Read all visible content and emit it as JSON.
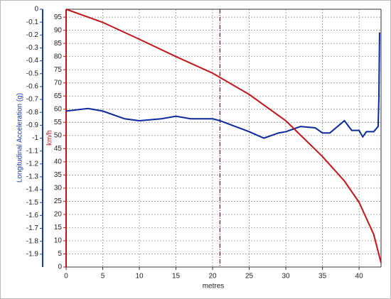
{
  "chart_data": {
    "type": "line",
    "xlabel": "metres",
    "ylabel": "Longitudinal Acceleration (g)",
    "y2label": "km/h",
    "xlim": [
      0,
      43
    ],
    "xticks": [
      0,
      5,
      10,
      15,
      20,
      25,
      30,
      35,
      40
    ],
    "ylim": [
      -2,
      0
    ],
    "yticks": [
      0,
      -0.1,
      -0.2,
      -0.3,
      -0.4,
      -0.5,
      -0.6,
      -0.7,
      -0.8,
      -0.9,
      -1,
      -1.1,
      -1.2,
      -1.3,
      -1.4,
      -1.5,
      -1.6,
      -1.7,
      -1.8,
      -1.9
    ],
    "y2lim": [
      0,
      98
    ],
    "y2ticks": [
      0,
      5,
      10,
      15,
      20,
      25,
      30,
      35,
      40,
      45,
      50,
      55,
      60,
      65,
      70,
      75,
      80,
      85,
      90,
      95
    ],
    "grid": true,
    "cursor_x": 21,
    "series": [
      {
        "color": "#0a2a9c",
        "axis": "y",
        "x": [
          0,
          3,
          5,
          8,
          10,
          13,
          15,
          17,
          20,
          21,
          25,
          27,
          29,
          30,
          32,
          34,
          35,
          36,
          38,
          39,
          40,
          40.5,
          41,
          42,
          42.6,
          42.7,
          42.8
        ],
        "values": [
          -0.79,
          -0.77,
          -0.79,
          -0.85,
          -0.865,
          -0.85,
          -0.83,
          -0.85,
          -0.85,
          -0.865,
          -0.95,
          -1.0,
          -0.96,
          -0.95,
          -0.91,
          -0.92,
          -0.96,
          -0.96,
          -0.865,
          -0.94,
          -0.94,
          -0.99,
          -0.95,
          -0.95,
          -0.91,
          -0.7,
          -0.18
        ]
      },
      {
        "color": "#c0161b",
        "axis": "y2",
        "x": [
          0,
          5,
          10,
          15,
          20,
          25,
          30,
          35,
          38,
          40,
          42,
          43
        ],
        "values": [
          98,
          93,
          86.6,
          80,
          73.7,
          65.6,
          55.6,
          42,
          32.7,
          24.6,
          12.4,
          1.6
        ]
      }
    ]
  }
}
